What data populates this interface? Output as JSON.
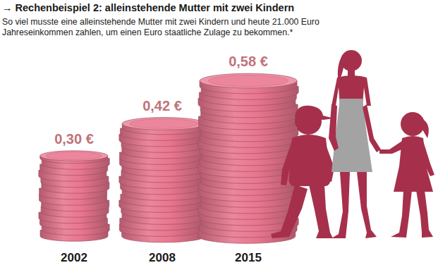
{
  "chart_data": {
    "type": "bar",
    "title": "→ Rechenbeispiel 2: alleinstehende Mutter mit zwei Kindern",
    "subtitle": "So viel musste eine alleinstehende Mutter mit zwei Kindern und heute 21.000 Euro Jahreseinkommen zahlen, um einen Euro staatliche Zulage zu bekommen.*",
    "categories": [
      "2002",
      "2008",
      "2015"
    ],
    "values": [
      0.3,
      0.42,
      0.58
    ],
    "value_labels": [
      "0,30 €",
      "0,42 €",
      "0,58 €"
    ],
    "data_labels": true,
    "ylim": [
      0,
      0.6
    ],
    "tick_labels": "x",
    "color": "#e8758e"
  }
}
